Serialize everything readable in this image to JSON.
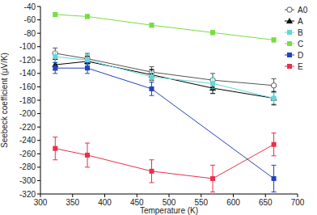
{
  "chart_data": {
    "type": "line",
    "x_label": "Temperature (K)",
    "y_label": "Seebeck coefficient (μV/K)",
    "xlim": [
      300,
      700
    ],
    "xticks": [
      300,
      350,
      400,
      450,
      500,
      550,
      600,
      650,
      700
    ],
    "ylim": [
      -320,
      -40
    ],
    "yticks": [
      -320,
      -300,
      -280,
      -260,
      -240,
      -220,
      -200,
      -180,
      -160,
      -140,
      -120,
      -100,
      -80,
      -60,
      -40
    ],
    "grid": false,
    "legend": "upper right",
    "series": [
      {
        "name": "A0",
        "color": "#555555",
        "marker": "circle-open",
        "x": [
          323,
          373,
          473,
          568,
          663
        ],
        "values": [
          -110,
          -118,
          -138,
          -150,
          -158
        ],
        "errors": [
          8,
          8,
          8,
          10,
          10
        ]
      },
      {
        "name": "A",
        "color": "#000000",
        "marker": "triangle",
        "x": [
          323,
          373,
          473,
          568,
          663
        ],
        "values": [
          -127,
          -122,
          -142,
          -162,
          -177
        ],
        "errors": [
          8,
          8,
          8,
          8,
          10
        ]
      },
      {
        "name": "B",
        "color": "#66d6d6",
        "marker": "square",
        "x": [
          323,
          373,
          473,
          568,
          663
        ],
        "values": [
          -115,
          -120,
          -145,
          -155,
          -177
        ],
        "errors": [
          8,
          8,
          8,
          8,
          8
        ]
      },
      {
        "name": "C",
        "color": "#77dd44",
        "marker": "square",
        "x": [
          323,
          373,
          473,
          568,
          663
        ],
        "values": [
          -52,
          -55,
          -68,
          -79,
          -90
        ],
        "errors": [
          3,
          3,
          3,
          3,
          3
        ]
      },
      {
        "name": "D",
        "color": "#2244bb",
        "marker": "square",
        "x": [
          323,
          373,
          473,
          663
        ],
        "values": [
          -132,
          -132,
          -163,
          -297
        ],
        "errors": [
          8,
          8,
          10,
          20
        ]
      },
      {
        "name": "E",
        "color": "#e8304a",
        "marker": "square",
        "x": [
          323,
          373,
          473,
          568,
          663
        ],
        "values": [
          -252,
          -262,
          -286,
          -297,
          -246
        ],
        "errors": [
          17,
          18,
          17,
          20,
          17
        ]
      }
    ]
  }
}
